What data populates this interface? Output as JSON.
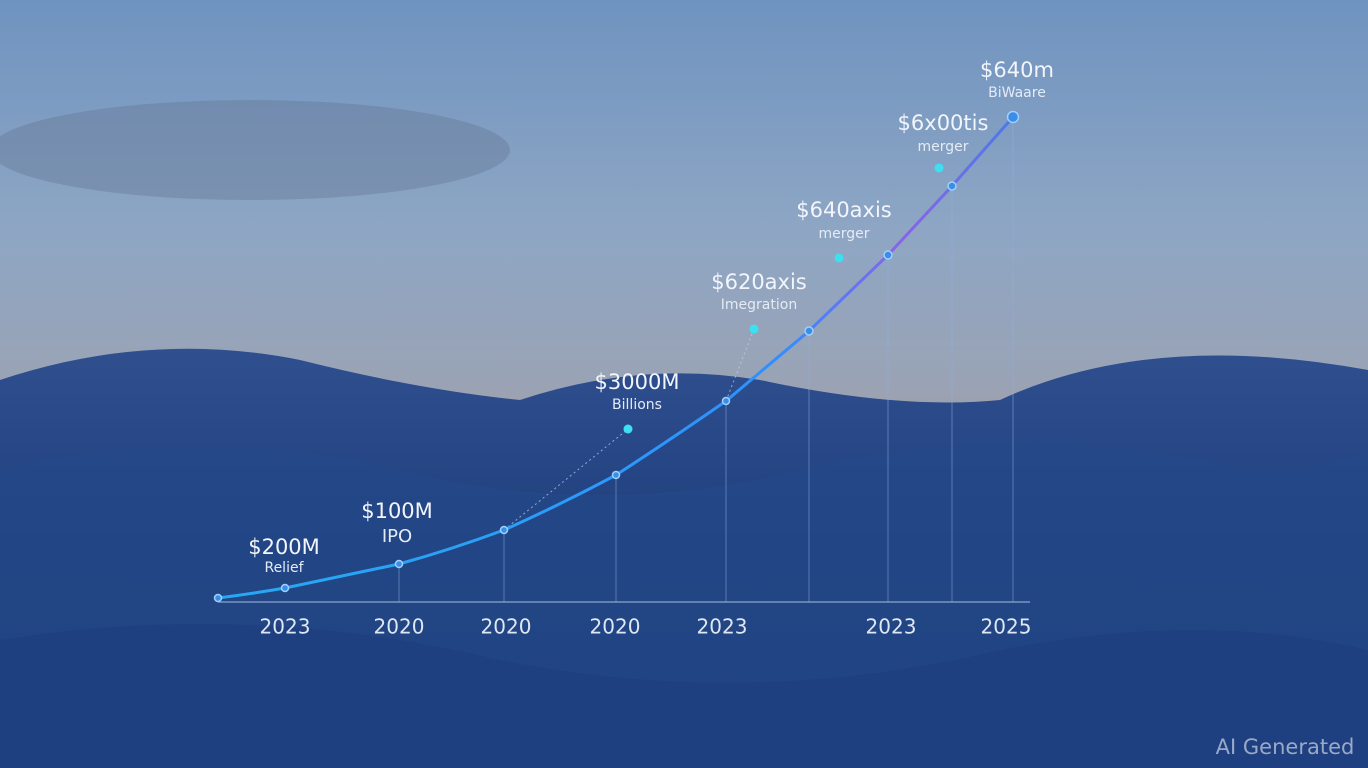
{
  "annotations": [
    {
      "value": "$200M",
      "note": "Relief"
    },
    {
      "value": "$100M",
      "note": "IPO"
    },
    {
      "value": "$3000M",
      "note": "Billions"
    },
    {
      "value": "$620axis",
      "note": "Imegration"
    },
    {
      "value": "$640axis",
      "note": "merger"
    },
    {
      "value": "$6x00tis",
      "note": "merger"
    },
    {
      "value": "$640m",
      "note": "BiWaare"
    }
  ],
  "x_labels": [
    "2023",
    "2020",
    "2020",
    "2020",
    "2023",
    "2023",
    "2025"
  ],
  "watermark": "AI Generated"
}
